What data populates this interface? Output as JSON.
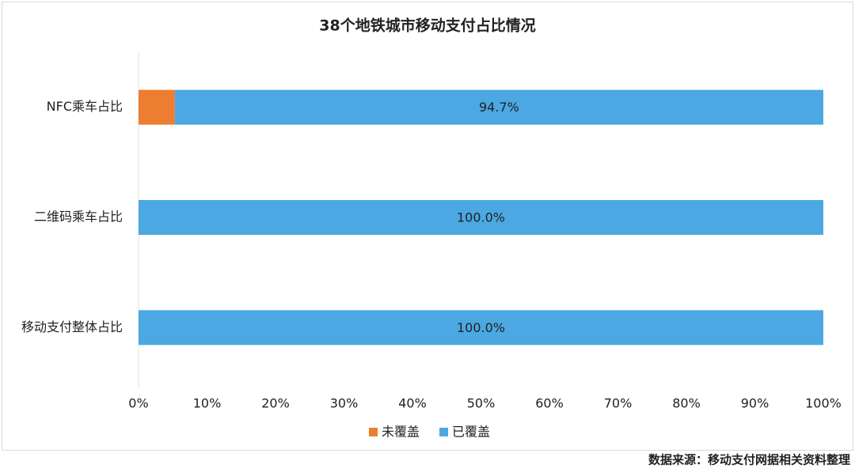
{
  "chart_data": {
    "type": "stacked-barh",
    "title": "38个地铁城市移动支付占比情况",
    "categories": [
      "NFC乘车占比",
      "二维码乘车占比",
      "移动支付整体占比"
    ],
    "series": [
      {
        "name": "未覆盖",
        "color": "#ED7D31",
        "values": [
          5.3,
          0,
          0
        ]
      },
      {
        "name": "已覆盖",
        "color": "#4BA8E2",
        "values": [
          94.7,
          100,
          100
        ],
        "value_labels": [
          "94.7%",
          "100.0%",
          "100.0%"
        ]
      }
    ],
    "xlim": [
      0,
      100
    ],
    "xticks": [
      {
        "value": 0,
        "label": "0%"
      },
      {
        "value": 10,
        "label": "10%"
      },
      {
        "value": 20,
        "label": "20%"
      },
      {
        "value": 30,
        "label": "30%"
      },
      {
        "value": 40,
        "label": "40%"
      },
      {
        "value": 50,
        "label": "50%"
      },
      {
        "value": 60,
        "label": "60%"
      },
      {
        "value": 70,
        "label": "70%"
      },
      {
        "value": 80,
        "label": "80%"
      },
      {
        "value": 90,
        "label": "90%"
      },
      {
        "value": 100,
        "label": "100%"
      }
    ],
    "legend": "bottom",
    "source": "数据来源：移动支付网据相关资料整理"
  }
}
